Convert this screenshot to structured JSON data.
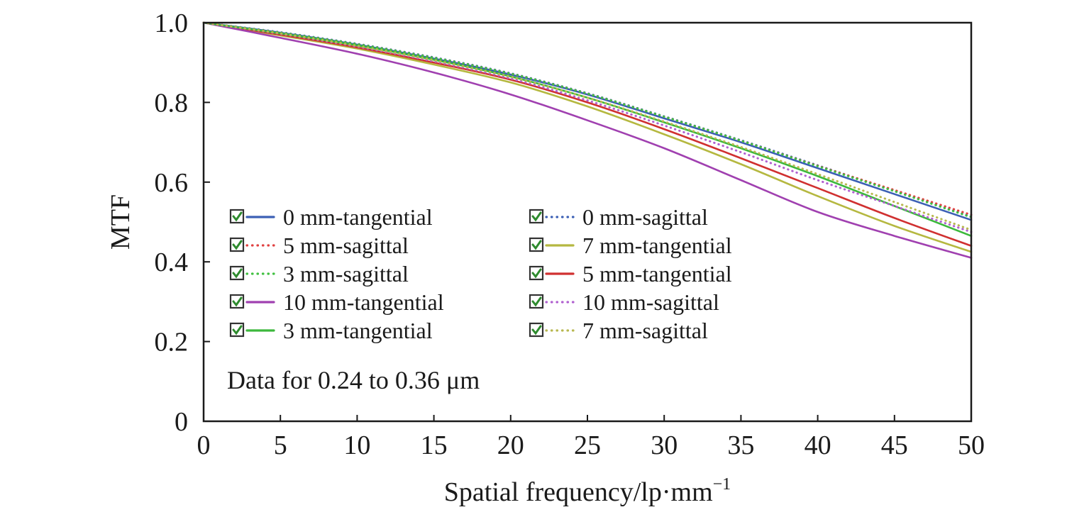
{
  "chart_data": {
    "type": "line",
    "xlabel": "Spatial frequency/lp·mm",
    "xlabel_sup": "−1",
    "ylabel": "MTF",
    "xlim": [
      0,
      50
    ],
    "ylim": [
      0,
      1.0
    ],
    "x_ticks": [
      "0",
      "5",
      "10",
      "15",
      "20",
      "25",
      "30",
      "35",
      "40",
      "45",
      "50"
    ],
    "y_ticks": [
      "0",
      "0.2",
      "0.4",
      "0.6",
      "0.8",
      "1.0"
    ],
    "grid": false,
    "legend_position": "lower-left",
    "annotation": "Data for 0.24 to 0.36 μm",
    "x": [
      0,
      5,
      10,
      15,
      20,
      25,
      30,
      35,
      40,
      45,
      50
    ],
    "series": [
      {
        "name": "0 mm-tangential",
        "color": "#3b5fb5",
        "dash": "solid",
        "values": [
          1.0,
          0.975,
          0.945,
          0.91,
          0.87,
          0.82,
          0.76,
          0.7,
          0.635,
          0.57,
          0.505
        ]
      },
      {
        "name": "0 mm-sagittal",
        "color": "#3b5fb5",
        "dash": "dotted",
        "values": [
          1.0,
          0.976,
          0.947,
          0.913,
          0.873,
          0.823,
          0.765,
          0.705,
          0.642,
          0.578,
          0.513
        ]
      },
      {
        "name": "5 mm-sagittal",
        "color": "#e04040",
        "dash": "dotted",
        "values": [
          1.0,
          0.975,
          0.946,
          0.912,
          0.872,
          0.822,
          0.764,
          0.704,
          0.641,
          0.58,
          0.518
        ]
      },
      {
        "name": "7 mm-tangential",
        "color": "#b5b840",
        "dash": "solid",
        "values": [
          1.0,
          0.968,
          0.935,
          0.895,
          0.85,
          0.79,
          0.72,
          0.645,
          0.565,
          0.49,
          0.425
        ]
      },
      {
        "name": "3 mm-sagittal",
        "color": "#40c040",
        "dash": "dotted",
        "values": [
          1.0,
          0.975,
          0.946,
          0.912,
          0.872,
          0.822,
          0.764,
          0.704,
          0.64,
          0.577,
          0.512
        ]
      },
      {
        "name": "5 mm-tangential",
        "color": "#d03030",
        "dash": "solid",
        "values": [
          1.0,
          0.97,
          0.938,
          0.9,
          0.857,
          0.8,
          0.733,
          0.66,
          0.585,
          0.51,
          0.44
        ]
      },
      {
        "name": "10 mm-tangential",
        "color": "#a040b0",
        "dash": "solid",
        "values": [
          1.0,
          0.962,
          0.922,
          0.875,
          0.82,
          0.755,
          0.685,
          0.605,
          0.525,
          0.465,
          0.41
        ]
      },
      {
        "name": "10 mm-sagittal",
        "color": "#b060d0",
        "dash": "dotted",
        "values": [
          1.0,
          0.972,
          0.94,
          0.903,
          0.86,
          0.805,
          0.742,
          0.675,
          0.605,
          0.54,
          0.475
        ]
      },
      {
        "name": "3 mm-tangential",
        "color": "#3cb83c",
        "dash": "solid",
        "values": [
          1.0,
          0.973,
          0.943,
          0.907,
          0.865,
          0.812,
          0.75,
          0.685,
          0.615,
          0.54,
          0.465
        ]
      },
      {
        "name": "7 mm-sagittal",
        "color": "#b8b850",
        "dash": "dotted",
        "values": [
          1.0,
          0.973,
          0.942,
          0.906,
          0.864,
          0.812,
          0.752,
          0.688,
          0.62,
          0.55,
          0.48
        ]
      }
    ]
  }
}
